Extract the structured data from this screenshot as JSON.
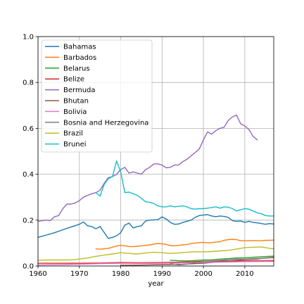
{
  "chart_data": {
    "type": "line",
    "title": "",
    "xlabel": "year",
    "ylabel": "",
    "xlim": [
      1960,
      2017
    ],
    "ylim": [
      0.0,
      1.0
    ],
    "grid": true,
    "legend_position": "upper-left",
    "xticks": [
      "1960",
      "1970",
      "1980",
      "1990",
      "2000",
      "2010"
    ],
    "yticks": [
      "0.0",
      "0.2",
      "0.4",
      "0.6",
      "0.8",
      "1.0"
    ],
    "series": [
      {
        "name": "Bahamas",
        "color": "#1f77b4",
        "points": [
          [
            1960,
            0.125
          ],
          [
            1962,
            0.135
          ],
          [
            1964,
            0.145
          ],
          [
            1966,
            0.158
          ],
          [
            1968,
            0.17
          ],
          [
            1970,
            0.182
          ],
          [
            1971,
            0.192
          ],
          [
            1972,
            0.175
          ],
          [
            1973,
            0.172
          ],
          [
            1974,
            0.162
          ],
          [
            1975,
            0.172
          ],
          [
            1977,
            0.12
          ],
          [
            1978,
            0.125
          ],
          [
            1979,
            0.132
          ],
          [
            1980,
            0.145
          ],
          [
            1981,
            0.178
          ],
          [
            1982,
            0.187
          ],
          [
            1983,
            0.166
          ],
          [
            1984,
            0.172
          ],
          [
            1985,
            0.175
          ],
          [
            1986,
            0.196
          ],
          [
            1987,
            0.2
          ],
          [
            1989,
            0.202
          ],
          [
            1990,
            0.214
          ],
          [
            1991,
            0.205
          ],
          [
            1992,
            0.19
          ],
          [
            1993,
            0.182
          ],
          [
            1994,
            0.183
          ],
          [
            1995,
            0.19
          ],
          [
            1996,
            0.195
          ],
          [
            1997,
            0.2
          ],
          [
            1998,
            0.212
          ],
          [
            1999,
            0.22
          ],
          [
            2000,
            0.222
          ],
          [
            2001,
            0.224
          ],
          [
            2002,
            0.218
          ],
          [
            2003,
            0.215
          ],
          [
            2004,
            0.218
          ],
          [
            2005,
            0.216
          ],
          [
            2006,
            0.212
          ],
          [
            2007,
            0.198
          ],
          [
            2008,
            0.195
          ],
          [
            2009,
            0.196
          ],
          [
            2010,
            0.19
          ],
          [
            2011,
            0.195
          ],
          [
            2012,
            0.19
          ],
          [
            2013,
            0.188
          ],
          [
            2014,
            0.185
          ],
          [
            2015,
            0.182
          ],
          [
            2016,
            0.185
          ],
          [
            2017,
            0.183
          ]
        ]
      },
      {
        "name": "Barbados",
        "color": "#ff7f0e",
        "points": [
          [
            1974,
            0.075
          ],
          [
            1975,
            0.073
          ],
          [
            1976,
            0.075
          ],
          [
            1977,
            0.077
          ],
          [
            1978,
            0.082
          ],
          [
            1979,
            0.087
          ],
          [
            1980,
            0.09
          ],
          [
            1981,
            0.088
          ],
          [
            1982,
            0.085
          ],
          [
            1983,
            0.084
          ],
          [
            1984,
            0.086
          ],
          [
            1985,
            0.088
          ],
          [
            1986,
            0.09
          ],
          [
            1987,
            0.092
          ],
          [
            1988,
            0.095
          ],
          [
            1989,
            0.098
          ],
          [
            1990,
            0.097
          ],
          [
            1991,
            0.094
          ],
          [
            1992,
            0.089
          ],
          [
            1993,
            0.088
          ],
          [
            1994,
            0.09
          ],
          [
            1995,
            0.092
          ],
          [
            1996,
            0.094
          ],
          [
            1997,
            0.098
          ],
          [
            1998,
            0.1
          ],
          [
            1999,
            0.102
          ],
          [
            2000,
            0.103
          ],
          [
            2001,
            0.101
          ],
          [
            2002,
            0.102
          ],
          [
            2003,
            0.104
          ],
          [
            2004,
            0.106
          ],
          [
            2005,
            0.112
          ],
          [
            2006,
            0.115
          ],
          [
            2007,
            0.116
          ],
          [
            2008,
            0.115
          ],
          [
            2009,
            0.11
          ],
          [
            2010,
            0.11
          ],
          [
            2011,
            0.11
          ],
          [
            2012,
            0.111
          ],
          [
            2013,
            0.11
          ],
          [
            2014,
            0.11
          ],
          [
            2015,
            0.112
          ],
          [
            2016,
            0.112
          ],
          [
            2017,
            0.113
          ]
        ]
      },
      {
        "name": "Belarus",
        "color": "#2ca02c",
        "points": [
          [
            1992,
            0.025
          ],
          [
            1994,
            0.023
          ],
          [
            1996,
            0.022
          ],
          [
            1998,
            0.024
          ],
          [
            2000,
            0.026
          ],
          [
            2002,
            0.027
          ],
          [
            2004,
            0.03
          ],
          [
            2006,
            0.032
          ],
          [
            2008,
            0.035
          ],
          [
            2010,
            0.036
          ],
          [
            2012,
            0.038
          ],
          [
            2014,
            0.04
          ],
          [
            2015,
            0.041
          ],
          [
            2016,
            0.042
          ],
          [
            2017,
            0.043
          ]
        ]
      },
      {
        "name": "Belize",
        "color": "#d62728",
        "points": [
          [
            1960,
            0.012
          ],
          [
            1965,
            0.012
          ],
          [
            1970,
            0.012
          ],
          [
            1975,
            0.013
          ],
          [
            1980,
            0.015
          ],
          [
            1985,
            0.014
          ],
          [
            1990,
            0.015
          ],
          [
            1995,
            0.017
          ],
          [
            2000,
            0.02
          ],
          [
            2005,
            0.022
          ],
          [
            2010,
            0.022
          ],
          [
            2015,
            0.023
          ],
          [
            2017,
            0.024
          ]
        ]
      },
      {
        "name": "Bermuda",
        "color": "#9467bd",
        "points": [
          [
            1960,
            0.195
          ],
          [
            1961,
            0.198
          ],
          [
            1962,
            0.2
          ],
          [
            1963,
            0.198
          ],
          [
            1964,
            0.215
          ],
          [
            1965,
            0.22
          ],
          [
            1966,
            0.25
          ],
          [
            1967,
            0.27
          ],
          [
            1968,
            0.27
          ],
          [
            1969,
            0.275
          ],
          [
            1970,
            0.285
          ],
          [
            1971,
            0.3
          ],
          [
            1972,
            0.308
          ],
          [
            1973,
            0.315
          ],
          [
            1974,
            0.32
          ],
          [
            1975,
            0.33
          ],
          [
            1976,
            0.36
          ],
          [
            1977,
            0.385
          ],
          [
            1978,
            0.39
          ],
          [
            1979,
            0.4
          ],
          [
            1980,
            0.42
          ],
          [
            1981,
            0.43
          ],
          [
            1982,
            0.405
          ],
          [
            1983,
            0.41
          ],
          [
            1984,
            0.405
          ],
          [
            1985,
            0.4
          ],
          [
            1986,
            0.42
          ],
          [
            1987,
            0.43
          ],
          [
            1988,
            0.445
          ],
          [
            1989,
            0.445
          ],
          [
            1990,
            0.44
          ],
          [
            1991,
            0.428
          ],
          [
            1992,
            0.43
          ],
          [
            1993,
            0.44
          ],
          [
            1994,
            0.44
          ],
          [
            1995,
            0.455
          ],
          [
            1996,
            0.465
          ],
          [
            1997,
            0.48
          ],
          [
            1998,
            0.495
          ],
          [
            1999,
            0.51
          ],
          [
            2000,
            0.55
          ],
          [
            2001,
            0.585
          ],
          [
            2002,
            0.575
          ],
          [
            2003,
            0.59
          ],
          [
            2004,
            0.6
          ],
          [
            2005,
            0.605
          ],
          [
            2006,
            0.635
          ],
          [
            2007,
            0.65
          ],
          [
            2008,
            0.658
          ],
          [
            2009,
            0.62
          ],
          [
            2010,
            0.61
          ],
          [
            2011,
            0.595
          ],
          [
            2012,
            0.565
          ],
          [
            2013,
            0.55
          ]
        ]
      },
      {
        "name": "Bhutan",
        "color": "#8c564b",
        "points": [
          [
            1980,
            0.003
          ],
          [
            1985,
            0.004
          ],
          [
            1990,
            0.006
          ],
          [
            1995,
            0.008
          ],
          [
            2000,
            0.012
          ],
          [
            2005,
            0.02
          ],
          [
            2010,
            0.028
          ],
          [
            2013,
            0.03
          ],
          [
            2015,
            0.035
          ],
          [
            2017,
            0.038
          ]
        ]
      },
      {
        "name": "Bolivia",
        "color": "#e377c2",
        "points": [
          [
            1960,
            0.005
          ],
          [
            1965,
            0.006
          ],
          [
            1970,
            0.008
          ],
          [
            1975,
            0.01
          ],
          [
            1980,
            0.012
          ],
          [
            1985,
            0.011
          ],
          [
            1990,
            0.012
          ],
          [
            1995,
            0.014
          ],
          [
            2000,
            0.016
          ],
          [
            2005,
            0.017
          ],
          [
            2010,
            0.019
          ],
          [
            2015,
            0.02
          ],
          [
            2017,
            0.02
          ]
        ]
      },
      {
        "name": "Bosnia and Herzegovina",
        "color": "#7f7f7f",
        "points": [
          [
            1992,
            0.01
          ],
          [
            1994,
            0.005
          ],
          [
            1996,
            0.008
          ],
          [
            1998,
            0.015
          ],
          [
            2000,
            0.02
          ],
          [
            2002,
            0.022
          ],
          [
            2004,
            0.025
          ],
          [
            2006,
            0.028
          ],
          [
            2008,
            0.03
          ],
          [
            2010,
            0.03
          ],
          [
            2012,
            0.032
          ],
          [
            2014,
            0.033
          ],
          [
            2016,
            0.035
          ],
          [
            2017,
            0.036
          ]
        ]
      },
      {
        "name": "Brazil",
        "color": "#bcbd22",
        "points": [
          [
            1960,
            0.025
          ],
          [
            1962,
            0.026
          ],
          [
            1964,
            0.026
          ],
          [
            1966,
            0.026
          ],
          [
            1968,
            0.027
          ],
          [
            1970,
            0.03
          ],
          [
            1972,
            0.035
          ],
          [
            1974,
            0.042
          ],
          [
            1976,
            0.048
          ],
          [
            1978,
            0.052
          ],
          [
            1980,
            0.058
          ],
          [
            1982,
            0.055
          ],
          [
            1984,
            0.052
          ],
          [
            1986,
            0.057
          ],
          [
            1988,
            0.06
          ],
          [
            1990,
            0.058
          ],
          [
            1992,
            0.055
          ],
          [
            1994,
            0.057
          ],
          [
            1996,
            0.06
          ],
          [
            1998,
            0.062
          ],
          [
            2000,
            0.062
          ],
          [
            2002,
            0.063
          ],
          [
            2004,
            0.066
          ],
          [
            2006,
            0.068
          ],
          [
            2008,
            0.074
          ],
          [
            2010,
            0.08
          ],
          [
            2012,
            0.082
          ],
          [
            2014,
            0.083
          ],
          [
            2016,
            0.077
          ],
          [
            2017,
            0.075
          ]
        ]
      },
      {
        "name": "Brunei",
        "color": "#17becf",
        "points": [
          [
            1974,
            0.32
          ],
          [
            1975,
            0.305
          ],
          [
            1976,
            0.355
          ],
          [
            1977,
            0.38
          ],
          [
            1978,
            0.39
          ],
          [
            1979,
            0.458
          ],
          [
            1980,
            0.41
          ],
          [
            1981,
            0.32
          ],
          [
            1982,
            0.322
          ],
          [
            1983,
            0.315
          ],
          [
            1984,
            0.308
          ],
          [
            1985,
            0.295
          ],
          [
            1986,
            0.28
          ],
          [
            1987,
            0.278
          ],
          [
            1988,
            0.272
          ],
          [
            1989,
            0.262
          ],
          [
            1990,
            0.258
          ],
          [
            1991,
            0.258
          ],
          [
            1992,
            0.262
          ],
          [
            1993,
            0.258
          ],
          [
            1994,
            0.26
          ],
          [
            1995,
            0.262
          ],
          [
            1996,
            0.258
          ],
          [
            1997,
            0.25
          ],
          [
            1998,
            0.248
          ],
          [
            1999,
            0.25
          ],
          [
            2000,
            0.25
          ],
          [
            2001,
            0.252
          ],
          [
            2002,
            0.255
          ],
          [
            2003,
            0.258
          ],
          [
            2004,
            0.252
          ],
          [
            2005,
            0.258
          ],
          [
            2006,
            0.256
          ],
          [
            2007,
            0.25
          ],
          [
            2008,
            0.24
          ],
          [
            2009,
            0.245
          ],
          [
            2010,
            0.25
          ],
          [
            2011,
            0.248
          ],
          [
            2012,
            0.24
          ],
          [
            2013,
            0.232
          ],
          [
            2014,
            0.228
          ],
          [
            2015,
            0.22
          ],
          [
            2016,
            0.218
          ],
          [
            2017,
            0.218
          ]
        ]
      }
    ]
  }
}
